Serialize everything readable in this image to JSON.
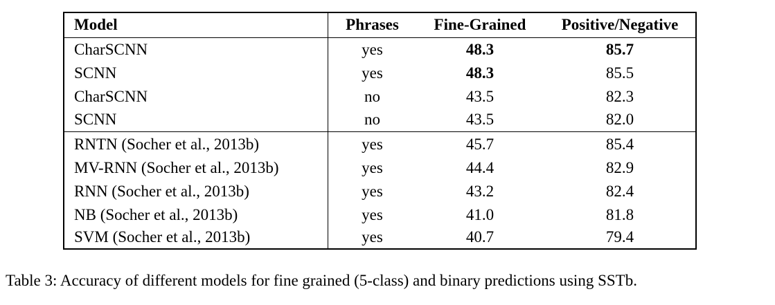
{
  "table": {
    "headers": [
      "Model",
      "Phrases",
      "Fine-Grained",
      "Positive/Negative"
    ],
    "rows": [
      {
        "model": "CharSCNN",
        "phrases": "yes",
        "fine": "48.3",
        "pn": "85.7",
        "fine_bold": true,
        "pn_bold": true
      },
      {
        "model": "SCNN",
        "phrases": "yes",
        "fine": "48.3",
        "pn": "85.5",
        "fine_bold": true,
        "pn_bold": false
      },
      {
        "model": "CharSCNN",
        "phrases": "no",
        "fine": "43.5",
        "pn": "82.3",
        "fine_bold": false,
        "pn_bold": false
      },
      {
        "model": "SCNN",
        "phrases": "no",
        "fine": "43.5",
        "pn": "82.0",
        "fine_bold": false,
        "pn_bold": false
      },
      {
        "model": "RNTN (Socher et al., 2013b)",
        "phrases": "yes",
        "fine": "45.7",
        "pn": "85.4",
        "fine_bold": false,
        "pn_bold": false
      },
      {
        "model": "MV-RNN (Socher et al., 2013b)",
        "phrases": "yes",
        "fine": "44.4",
        "pn": "82.9",
        "fine_bold": false,
        "pn_bold": false
      },
      {
        "model": "RNN (Socher et al., 2013b)",
        "phrases": "yes",
        "fine": "43.2",
        "pn": "82.4",
        "fine_bold": false,
        "pn_bold": false
      },
      {
        "model": "NB (Socher et al., 2013b)",
        "phrases": "yes",
        "fine": "41.0",
        "pn": "81.8",
        "fine_bold": false,
        "pn_bold": false
      },
      {
        "model": "SVM (Socher et al., 2013b)",
        "phrases": "yes",
        "fine": "40.7",
        "pn": "79.4",
        "fine_bold": false,
        "pn_bold": false
      }
    ]
  },
  "caption": "Table 3: Accuracy of different models for fine grained (5-class) and binary predictions using SSTb."
}
